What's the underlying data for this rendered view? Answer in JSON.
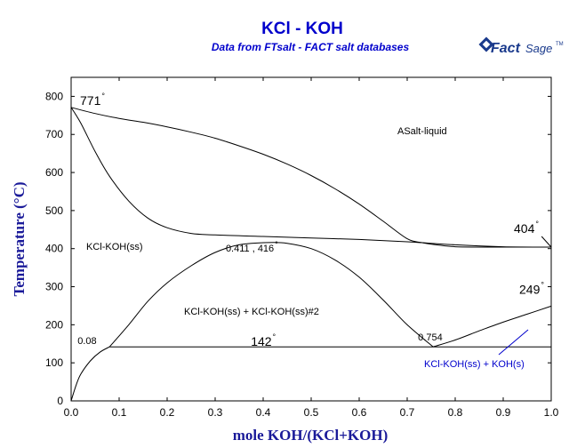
{
  "chart_data": {
    "type": "line",
    "title": "KCl - KOH",
    "subtitle": "Data from FTsalt - FACT salt databases",
    "xlabel": "mole KOH/(KCl+KOH)",
    "ylabel": "Temperature (°C)",
    "xlim": [
      0,
      1
    ],
    "ylim": [
      0,
      850
    ],
    "x_ticks": [
      "0.0",
      "0.1",
      "0.2",
      "0.3",
      "0.4",
      "0.5",
      "0.6",
      "0.7",
      "0.8",
      "0.9",
      "1.0"
    ],
    "y_ticks": [
      "0",
      "100",
      "200",
      "300",
      "400",
      "500",
      "600",
      "700",
      "800"
    ],
    "grid": false,
    "series": [
      {
        "x": [
          0,
          0.05,
          0.1,
          0.15,
          0.2,
          0.25,
          0.3,
          0.35,
          0.4,
          0.45,
          0.5,
          0.55,
          0.6,
          0.65,
          0.7,
          0.73,
          0.76,
          0.8,
          0.85,
          0.9,
          0.95,
          1.0
        ],
        "y": [
          771,
          755,
          742,
          732,
          720,
          706,
          690,
          670,
          648,
          622,
          592,
          557,
          517,
          472,
          426,
          416,
          410,
          405,
          404,
          404,
          404,
          404
        ]
      },
      {
        "x": [
          0,
          0.02,
          0.05,
          0.08,
          0.12,
          0.16,
          0.2,
          0.25,
          0.3,
          0.4,
          0.5,
          0.6,
          0.7,
          0.8,
          0.9,
          1.0
        ],
        "y": [
          771,
          730,
          655,
          590,
          525,
          480,
          455,
          440,
          436,
          432,
          428,
          424,
          418,
          410,
          405,
          404
        ]
      },
      {
        "x": [
          0,
          0.01,
          0.02,
          0.04,
          0.06,
          0.08
        ],
        "y": [
          0,
          40,
          70,
          105,
          128,
          142
        ]
      },
      {
        "x": [
          0.08,
          0.12,
          0.16,
          0.2,
          0.25,
          0.3,
          0.35,
          0.411,
          0.45,
          0.5,
          0.55,
          0.6,
          0.65,
          0.7,
          0.754
        ],
        "y": [
          142,
          200,
          262,
          310,
          355,
          390,
          410,
          416,
          414,
          400,
          370,
          325,
          265,
          200,
          142
        ]
      },
      {
        "x": [
          0.754,
          0.8,
          0.85,
          0.9,
          0.95,
          1.0
        ],
        "y": [
          142,
          160,
          184,
          207,
          228,
          249
        ]
      },
      {
        "x": [
          0.08,
          1.0
        ],
        "y": [
          142,
          142
        ]
      }
    ],
    "annotations": [
      {
        "text": "771",
        "deg": true,
        "x": 0.0,
        "y": 771
      },
      {
        "text": "404",
        "deg": true,
        "x": 1.0,
        "y": 404
      },
      {
        "text": "249",
        "deg": true,
        "x": 1.0,
        "y": 249
      },
      {
        "text": "142",
        "deg": true,
        "x": 0.43,
        "y": 142
      },
      {
        "text": "0.411 , 416",
        "deg": true,
        "x": 0.411,
        "y": 416
      },
      {
        "text": "0.08",
        "x": 0.08,
        "y": 142
      },
      {
        "text": "0.754",
        "x": 0.754,
        "y": 142
      }
    ],
    "phase_labels": [
      {
        "text": "ASalt-liquid"
      },
      {
        "text": "KCl-KOH(ss)"
      },
      {
        "text": "KCl-KOH(ss) + KCl-KOH(ss)#2"
      },
      {
        "text": "KCl-KOH(ss) + KOH(s)",
        "color": "#0000cc"
      }
    ]
  },
  "logo": {
    "text1": "Fact",
    "text2": "Sage",
    "tm": "TM"
  }
}
